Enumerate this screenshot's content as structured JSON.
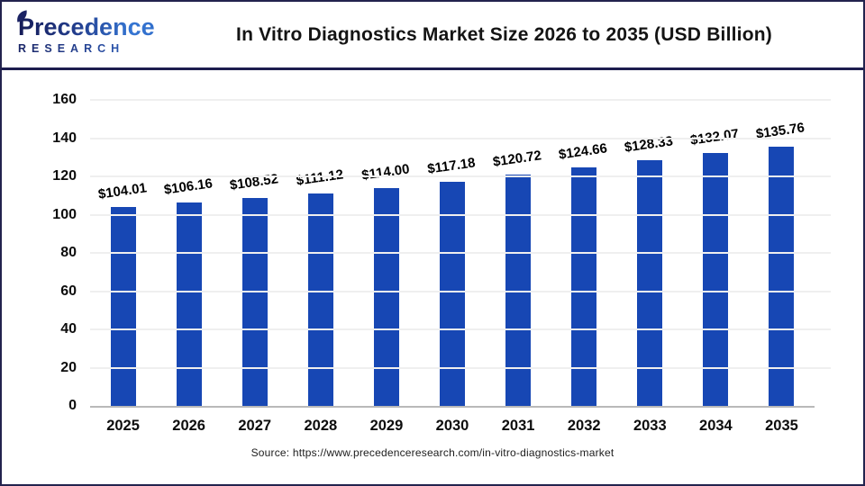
{
  "header": {
    "logo": {
      "line1": "Precedence",
      "line2": "RESEARCH",
      "icon": "leaf-icon"
    },
    "title": "In Vitro Diagnostics Market Size 2026 to 2035 (USD Billion)"
  },
  "chart_data": {
    "type": "bar",
    "title": "In Vitro Diagnostics Market Size 2026 to 2035 (USD Billion)",
    "categories": [
      "2025",
      "2026",
      "2027",
      "2028",
      "2029",
      "2030",
      "2031",
      "2032",
      "2033",
      "2034",
      "2035"
    ],
    "values": [
      104.01,
      106.16,
      108.52,
      111.12,
      114.0,
      117.18,
      120.72,
      124.66,
      128.33,
      132.07,
      135.76
    ],
    "value_labels": [
      "$104.01",
      "$106.16",
      "$108.52",
      "$111.12",
      "$114.00",
      "$117.18",
      "$120.72",
      "$124.66",
      "$128.33",
      "$132.07",
      "$135.76"
    ],
    "xlabel": "",
    "ylabel": "",
    "ylim": [
      0,
      160
    ],
    "yticks": [
      0,
      20,
      40,
      60,
      80,
      100,
      120,
      140,
      160
    ],
    "grid": true,
    "legend": false,
    "unit": "USD Billion",
    "bar_color": "#1747b4"
  },
  "footer": {
    "source": "Source: https://www.precedenceresearch.com/in-vitro-diagnostics-market"
  },
  "colors": {
    "bar": "#1747b4",
    "border_navy": "#1d1d4f",
    "gridline": "#efefef",
    "axis_line": "#b9b9b9",
    "text": "#0d0d0d",
    "logo_dark": "#151b57",
    "logo_blue": "#3575d2"
  }
}
